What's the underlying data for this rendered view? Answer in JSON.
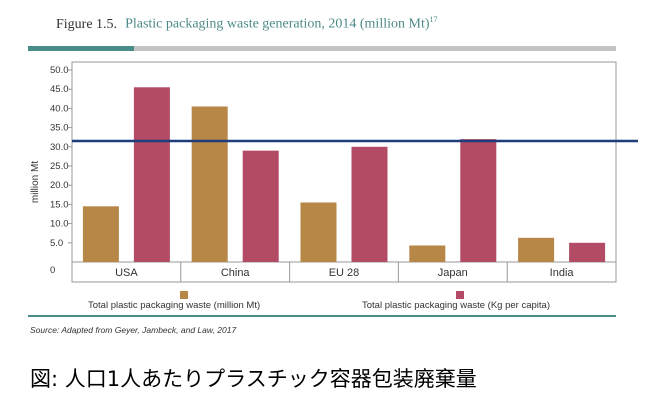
{
  "figure": {
    "number": "Figure  1.5.",
    "title": "Plastic packaging waste generation, 2014 (million Mt)",
    "ref": "17"
  },
  "chart_data": {
    "type": "bar",
    "categories": [
      "USA",
      "China",
      "EU 28",
      "Japan",
      "India"
    ],
    "series": [
      {
        "name": "Total plastic packaging waste (million Mt)",
        "values": [
          14.5,
          40.5,
          15.5,
          4.3,
          6.3
        ],
        "color": "#b68747"
      },
      {
        "name": "Total plastic packaging waste (Kg per capita)",
        "values": [
          45.5,
          29.0,
          30.0,
          32.0,
          5.0
        ],
        "color": "#b24b63"
      }
    ],
    "ylabel": "million Mt",
    "ylim": [
      0,
      50
    ],
    "yticks": [
      "0",
      "5.0",
      "10.0",
      "15.0",
      "20.0",
      "25.0",
      "30.0",
      "35.0",
      "40.0",
      "45.0",
      "50.0"
    ],
    "reference_line": {
      "value": 31.5,
      "color": "#1f3d7a"
    },
    "legend": "bottom"
  },
  "source": "Source:   Adapted from Geyer, Jambeck, and Law, 2017",
  "caption": "図: 人口1人あたりプラスチック容器包装廃棄量"
}
